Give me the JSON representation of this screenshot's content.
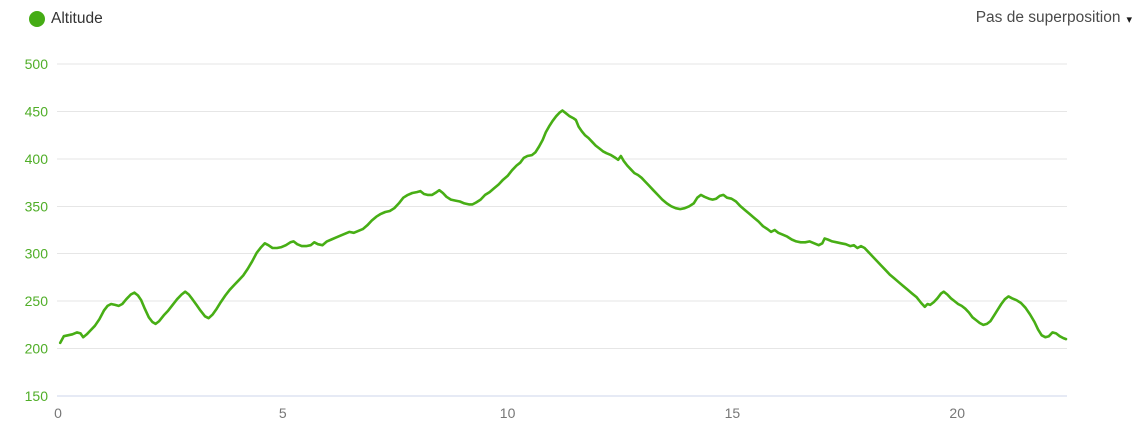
{
  "header": {
    "legend": {
      "label": "Altitude",
      "dot_color": "#45AC15"
    },
    "overlay_dropdown": {
      "label": "Pas de superposition",
      "caret": "▾"
    }
  },
  "chart_data": {
    "type": "line",
    "title": "",
    "xlabel": "",
    "ylabel": "",
    "xlim": [
      0,
      22.42
    ],
    "ylim": [
      150,
      500
    ],
    "x_ticks": [
      0,
      5,
      10,
      15,
      20
    ],
    "y_ticks": [
      150,
      200,
      250,
      300,
      350,
      400,
      450,
      500
    ],
    "grid": true,
    "legend_position": "top-left",
    "colors": {
      "line": "#47AE15",
      "grid": "#e6e6e6",
      "axis_line": "#ccd6eb",
      "x_label": "#777777",
      "y_label": "#50AE28"
    },
    "series": [
      {
        "name": "Altitude",
        "color": "#47AE15",
        "points": [
          [
            0.05,
            206
          ],
          [
            0.13,
            213
          ],
          [
            0.22,
            214
          ],
          [
            0.32,
            215
          ],
          [
            0.42,
            217
          ],
          [
            0.5,
            216
          ],
          [
            0.56,
            212
          ],
          [
            0.64,
            215
          ],
          [
            0.72,
            219
          ],
          [
            0.82,
            224
          ],
          [
            0.92,
            231
          ],
          [
            1.02,
            240
          ],
          [
            1.1,
            245
          ],
          [
            1.18,
            247
          ],
          [
            1.27,
            246
          ],
          [
            1.35,
            245
          ],
          [
            1.43,
            247
          ],
          [
            1.52,
            252
          ],
          [
            1.62,
            257
          ],
          [
            1.7,
            259
          ],
          [
            1.78,
            256
          ],
          [
            1.85,
            251
          ],
          [
            1.93,
            242
          ],
          [
            2.02,
            233
          ],
          [
            2.1,
            228
          ],
          [
            2.17,
            226
          ],
          [
            2.25,
            229
          ],
          [
            2.35,
            235
          ],
          [
            2.45,
            240
          ],
          [
            2.55,
            246
          ],
          [
            2.65,
            252
          ],
          [
            2.75,
            257
          ],
          [
            2.83,
            260
          ],
          [
            2.91,
            257
          ],
          [
            2.99,
            252
          ],
          [
            3.08,
            246
          ],
          [
            3.17,
            240
          ],
          [
            3.27,
            234
          ],
          [
            3.35,
            232
          ],
          [
            3.44,
            236
          ],
          [
            3.53,
            242
          ],
          [
            3.62,
            249
          ],
          [
            3.72,
            256
          ],
          [
            3.82,
            262
          ],
          [
            3.92,
            267
          ],
          [
            4.02,
            272
          ],
          [
            4.12,
            277
          ],
          [
            4.22,
            284
          ],
          [
            4.32,
            292
          ],
          [
            4.42,
            301
          ],
          [
            4.52,
            307
          ],
          [
            4.6,
            311
          ],
          [
            4.68,
            309
          ],
          [
            4.77,
            306
          ],
          [
            4.87,
            306
          ],
          [
            4.97,
            307
          ],
          [
            5.07,
            309
          ],
          [
            5.17,
            312
          ],
          [
            5.24,
            313
          ],
          [
            5.32,
            310
          ],
          [
            5.42,
            308
          ],
          [
            5.52,
            308
          ],
          [
            5.62,
            309
          ],
          [
            5.7,
            312
          ],
          [
            5.78,
            310
          ],
          [
            5.88,
            309
          ],
          [
            5.98,
            313
          ],
          [
            6.08,
            315
          ],
          [
            6.18,
            317
          ],
          [
            6.28,
            319
          ],
          [
            6.38,
            321
          ],
          [
            6.48,
            323
          ],
          [
            6.58,
            322
          ],
          [
            6.68,
            324
          ],
          [
            6.78,
            326
          ],
          [
            6.88,
            330
          ],
          [
            6.98,
            335
          ],
          [
            7.08,
            339
          ],
          [
            7.18,
            342
          ],
          [
            7.28,
            344
          ],
          [
            7.38,
            345
          ],
          [
            7.48,
            348
          ],
          [
            7.58,
            353
          ],
          [
            7.68,
            359
          ],
          [
            7.78,
            362
          ],
          [
            7.88,
            364
          ],
          [
            7.98,
            365
          ],
          [
            8.06,
            366
          ],
          [
            8.14,
            363
          ],
          [
            8.22,
            362
          ],
          [
            8.32,
            362
          ],
          [
            8.42,
            365
          ],
          [
            8.48,
            367
          ],
          [
            8.56,
            364
          ],
          [
            8.64,
            360
          ],
          [
            8.74,
            357
          ],
          [
            8.84,
            356
          ],
          [
            8.94,
            355
          ],
          [
            9.04,
            353
          ],
          [
            9.14,
            352
          ],
          [
            9.22,
            352
          ],
          [
            9.3,
            354
          ],
          [
            9.4,
            357
          ],
          [
            9.5,
            362
          ],
          [
            9.6,
            365
          ],
          [
            9.7,
            369
          ],
          [
            9.8,
            373
          ],
          [
            9.9,
            378
          ],
          [
            10.0,
            382
          ],
          [
            10.1,
            388
          ],
          [
            10.2,
            393
          ],
          [
            10.28,
            396
          ],
          [
            10.36,
            401
          ],
          [
            10.44,
            403
          ],
          [
            10.54,
            404
          ],
          [
            10.62,
            407
          ],
          [
            10.7,
            413
          ],
          [
            10.78,
            420
          ],
          [
            10.85,
            428
          ],
          [
            10.92,
            434
          ],
          [
            11.0,
            440
          ],
          [
            11.08,
            445
          ],
          [
            11.16,
            449
          ],
          [
            11.22,
            451
          ],
          [
            11.3,
            448
          ],
          [
            11.38,
            445
          ],
          [
            11.46,
            443
          ],
          [
            11.52,
            441
          ],
          [
            11.58,
            434
          ],
          [
            11.65,
            429
          ],
          [
            11.72,
            425
          ],
          [
            11.8,
            422
          ],
          [
            11.88,
            418
          ],
          [
            11.96,
            414
          ],
          [
            12.04,
            411
          ],
          [
            12.12,
            408
          ],
          [
            12.2,
            406
          ],
          [
            12.3,
            404
          ],
          [
            12.4,
            401
          ],
          [
            12.46,
            399
          ],
          [
            12.52,
            403
          ],
          [
            12.58,
            398
          ],
          [
            12.66,
            393
          ],
          [
            12.74,
            389
          ],
          [
            12.82,
            385
          ],
          [
            12.9,
            383
          ],
          [
            12.98,
            380
          ],
          [
            13.06,
            376
          ],
          [
            13.14,
            372
          ],
          [
            13.24,
            367
          ],
          [
            13.34,
            362
          ],
          [
            13.44,
            357
          ],
          [
            13.54,
            353
          ],
          [
            13.64,
            350
          ],
          [
            13.74,
            348
          ],
          [
            13.84,
            347
          ],
          [
            13.94,
            348
          ],
          [
            14.04,
            350
          ],
          [
            14.14,
            353
          ],
          [
            14.22,
            359
          ],
          [
            14.3,
            362
          ],
          [
            14.38,
            360
          ],
          [
            14.48,
            358
          ],
          [
            14.56,
            357
          ],
          [
            14.64,
            358
          ],
          [
            14.72,
            361
          ],
          [
            14.8,
            362
          ],
          [
            14.88,
            359
          ],
          [
            14.98,
            358
          ],
          [
            15.08,
            355
          ],
          [
            15.18,
            350
          ],
          [
            15.28,
            346
          ],
          [
            15.38,
            342
          ],
          [
            15.48,
            338
          ],
          [
            15.58,
            334
          ],
          [
            15.68,
            329
          ],
          [
            15.78,
            326
          ],
          [
            15.86,
            323
          ],
          [
            15.94,
            325
          ],
          [
            16.02,
            322
          ],
          [
            16.12,
            320
          ],
          [
            16.22,
            318
          ],
          [
            16.32,
            315
          ],
          [
            16.42,
            313
          ],
          [
            16.52,
            312
          ],
          [
            16.62,
            312
          ],
          [
            16.72,
            313
          ],
          [
            16.82,
            311
          ],
          [
            16.92,
            309
          ],
          [
            17.0,
            311
          ],
          [
            17.05,
            316
          ],
          [
            17.12,
            315
          ],
          [
            17.22,
            313
          ],
          [
            17.32,
            312
          ],
          [
            17.42,
            311
          ],
          [
            17.52,
            310
          ],
          [
            17.62,
            308
          ],
          [
            17.7,
            309
          ],
          [
            17.78,
            306
          ],
          [
            17.86,
            308
          ],
          [
            17.94,
            306
          ],
          [
            18.02,
            302
          ],
          [
            18.1,
            298
          ],
          [
            18.2,
            293
          ],
          [
            18.3,
            288
          ],
          [
            18.4,
            283
          ],
          [
            18.5,
            278
          ],
          [
            18.6,
            274
          ],
          [
            18.7,
            270
          ],
          [
            18.8,
            266
          ],
          [
            18.9,
            262
          ],
          [
            19.0,
            258
          ],
          [
            19.1,
            254
          ],
          [
            19.2,
            248
          ],
          [
            19.28,
            244
          ],
          [
            19.34,
            247
          ],
          [
            19.4,
            246
          ],
          [
            19.48,
            249
          ],
          [
            19.56,
            253
          ],
          [
            19.64,
            258
          ],
          [
            19.7,
            260
          ],
          [
            19.78,
            257
          ],
          [
            19.86,
            253
          ],
          [
            19.94,
            250
          ],
          [
            20.02,
            247
          ],
          [
            20.1,
            245
          ],
          [
            20.18,
            242
          ],
          [
            20.26,
            238
          ],
          [
            20.34,
            233
          ],
          [
            20.42,
            230
          ],
          [
            20.5,
            227
          ],
          [
            20.58,
            225
          ],
          [
            20.66,
            226
          ],
          [
            20.74,
            229
          ],
          [
            20.82,
            235
          ],
          [
            20.9,
            241
          ],
          [
            20.98,
            247
          ],
          [
            21.06,
            252
          ],
          [
            21.14,
            255
          ],
          [
            21.22,
            253
          ],
          [
            21.32,
            251
          ],
          [
            21.42,
            248
          ],
          [
            21.52,
            243
          ],
          [
            21.62,
            236
          ],
          [
            21.72,
            228
          ],
          [
            21.8,
            220
          ],
          [
            21.88,
            214
          ],
          [
            21.96,
            212
          ],
          [
            22.04,
            213
          ],
          [
            22.12,
            217
          ],
          [
            22.2,
            216
          ],
          [
            22.28,
            213
          ],
          [
            22.36,
            211
          ],
          [
            22.42,
            210
          ]
        ]
      }
    ]
  }
}
